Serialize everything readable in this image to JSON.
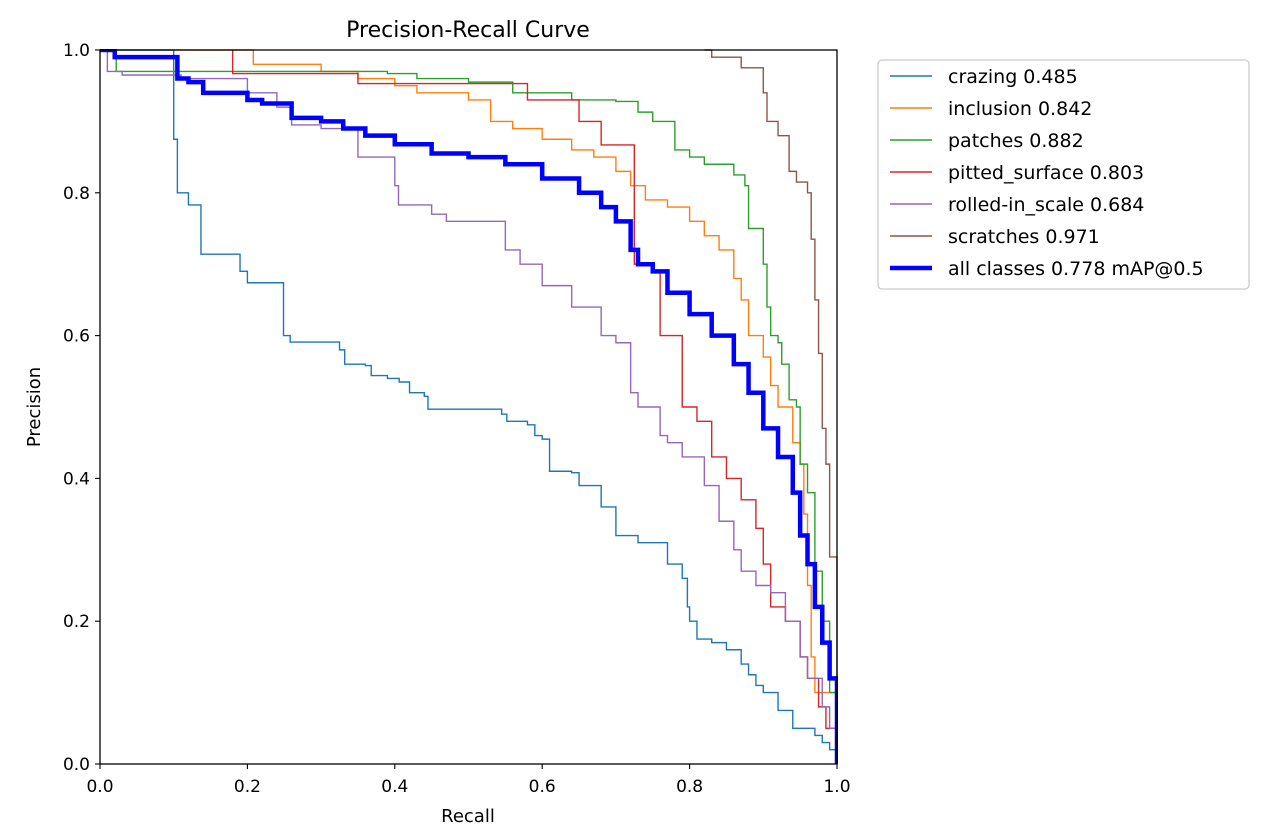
{
  "chart_data": {
    "type": "line",
    "title": "Precision-Recall Curve",
    "xlabel": "Recall",
    "ylabel": "Precision",
    "xlim": [
      0.0,
      1.0
    ],
    "ylim": [
      0.0,
      1.0
    ],
    "xticks": [
      "0.0",
      "0.2",
      "0.4",
      "0.6",
      "0.8",
      "1.0"
    ],
    "yticks": [
      "0.0",
      "0.2",
      "0.4",
      "0.6",
      "0.8",
      "1.0"
    ],
    "grid": false,
    "legend_position": "outside-top-right",
    "series": [
      {
        "name": "crazing 0.485",
        "color": "#1f77b4",
        "emphasis": false,
        "points": [
          [
            0.0,
            1.0
          ],
          [
            0.094,
            1.0
          ],
          [
            0.1,
            0.875
          ],
          [
            0.105,
            0.8
          ],
          [
            0.12,
            0.783
          ],
          [
            0.137,
            0.714
          ],
          [
            0.18,
            0.714
          ],
          [
            0.19,
            0.69
          ],
          [
            0.2,
            0.674
          ],
          [
            0.247,
            0.674
          ],
          [
            0.249,
            0.6
          ],
          [
            0.258,
            0.591
          ],
          [
            0.32,
            0.591
          ],
          [
            0.325,
            0.58
          ],
          [
            0.332,
            0.56
          ],
          [
            0.36,
            0.558
          ],
          [
            0.368,
            0.544
          ],
          [
            0.39,
            0.54
          ],
          [
            0.406,
            0.535
          ],
          [
            0.42,
            0.52
          ],
          [
            0.44,
            0.515
          ],
          [
            0.445,
            0.497
          ],
          [
            0.52,
            0.497
          ],
          [
            0.545,
            0.49
          ],
          [
            0.552,
            0.48
          ],
          [
            0.58,
            0.475
          ],
          [
            0.59,
            0.46
          ],
          [
            0.6,
            0.455
          ],
          [
            0.61,
            0.41
          ],
          [
            0.64,
            0.408
          ],
          [
            0.65,
            0.39
          ],
          [
            0.67,
            0.39
          ],
          [
            0.68,
            0.36
          ],
          [
            0.7,
            0.32
          ],
          [
            0.72,
            0.32
          ],
          [
            0.73,
            0.31
          ],
          [
            0.76,
            0.31
          ],
          [
            0.77,
            0.28
          ],
          [
            0.79,
            0.26
          ],
          [
            0.797,
            0.22
          ],
          [
            0.8,
            0.2
          ],
          [
            0.81,
            0.175
          ],
          [
            0.83,
            0.17
          ],
          [
            0.85,
            0.16
          ],
          [
            0.87,
            0.14
          ],
          [
            0.88,
            0.125
          ],
          [
            0.89,
            0.11
          ],
          [
            0.9,
            0.1
          ],
          [
            0.92,
            0.075
          ],
          [
            0.94,
            0.05
          ],
          [
            0.97,
            0.04
          ],
          [
            0.98,
            0.03
          ],
          [
            0.99,
            0.02
          ],
          [
            1.0,
            0.0
          ]
        ]
      },
      {
        "name": "inclusion 0.842",
        "color": "#ff7f0e",
        "emphasis": false,
        "points": [
          [
            0.1,
            1.0
          ],
          [
            0.2,
            1.0
          ],
          [
            0.208,
            0.98
          ],
          [
            0.29,
            0.98
          ],
          [
            0.3,
            0.97
          ],
          [
            0.34,
            0.97
          ],
          [
            0.35,
            0.96
          ],
          [
            0.4,
            0.95
          ],
          [
            0.43,
            0.94
          ],
          [
            0.5,
            0.93
          ],
          [
            0.53,
            0.9
          ],
          [
            0.56,
            0.89
          ],
          [
            0.6,
            0.875
          ],
          [
            0.64,
            0.86
          ],
          [
            0.67,
            0.85
          ],
          [
            0.7,
            0.83
          ],
          [
            0.72,
            0.81
          ],
          [
            0.74,
            0.79
          ],
          [
            0.77,
            0.78
          ],
          [
            0.8,
            0.76
          ],
          [
            0.82,
            0.74
          ],
          [
            0.84,
            0.72
          ],
          [
            0.86,
            0.68
          ],
          [
            0.87,
            0.65
          ],
          [
            0.88,
            0.6
          ],
          [
            0.9,
            0.57
          ],
          [
            0.91,
            0.53
          ],
          [
            0.92,
            0.5
          ],
          [
            0.94,
            0.45
          ],
          [
            0.95,
            0.42
          ],
          [
            0.955,
            0.35
          ],
          [
            0.96,
            0.25
          ],
          [
            0.965,
            0.15
          ],
          [
            0.97,
            0.1
          ],
          [
            1.0,
            0.0
          ]
        ]
      },
      {
        "name": "patches 0.882",
        "color": "#2ca02c",
        "emphasis": false,
        "points": [
          [
            0.0,
            1.0
          ],
          [
            0.02,
            1.0
          ],
          [
            0.022,
            0.97
          ],
          [
            0.2,
            0.97
          ],
          [
            0.3,
            0.97
          ],
          [
            0.39,
            0.967
          ],
          [
            0.43,
            0.96
          ],
          [
            0.5,
            0.955
          ],
          [
            0.56,
            0.94
          ],
          [
            0.64,
            0.93
          ],
          [
            0.7,
            0.928
          ],
          [
            0.73,
            0.913
          ],
          [
            0.75,
            0.9
          ],
          [
            0.78,
            0.86
          ],
          [
            0.8,
            0.85
          ],
          [
            0.82,
            0.84
          ],
          [
            0.86,
            0.825
          ],
          [
            0.875,
            0.81
          ],
          [
            0.88,
            0.75
          ],
          [
            0.9,
            0.7
          ],
          [
            0.905,
            0.64
          ],
          [
            0.91,
            0.6
          ],
          [
            0.92,
            0.59
          ],
          [
            0.925,
            0.56
          ],
          [
            0.935,
            0.51
          ],
          [
            0.945,
            0.5
          ],
          [
            0.95,
            0.42
          ],
          [
            0.96,
            0.38
          ],
          [
            0.97,
            0.27
          ],
          [
            0.98,
            0.2
          ],
          [
            0.99,
            0.1
          ],
          [
            1.0,
            0.0
          ]
        ]
      },
      {
        "name": "pitted_surface 0.803",
        "color": "#d62728",
        "emphasis": false,
        "points": [
          [
            0.18,
            1.0
          ],
          [
            0.18,
            0.967
          ],
          [
            0.34,
            0.967
          ],
          [
            0.35,
            0.953
          ],
          [
            0.57,
            0.953
          ],
          [
            0.58,
            0.93
          ],
          [
            0.64,
            0.93
          ],
          [
            0.65,
            0.9
          ],
          [
            0.67,
            0.9
          ],
          [
            0.68,
            0.867
          ],
          [
            0.72,
            0.867
          ],
          [
            0.725,
            0.7
          ],
          [
            0.75,
            0.69
          ],
          [
            0.76,
            0.6
          ],
          [
            0.77,
            0.6
          ],
          [
            0.79,
            0.5
          ],
          [
            0.8,
            0.5
          ],
          [
            0.81,
            0.48
          ],
          [
            0.83,
            0.43
          ],
          [
            0.85,
            0.4
          ],
          [
            0.87,
            0.37
          ],
          [
            0.89,
            0.33
          ],
          [
            0.9,
            0.28
          ],
          [
            0.91,
            0.22
          ],
          [
            0.93,
            0.2
          ],
          [
            0.95,
            0.15
          ],
          [
            0.96,
            0.12
          ],
          [
            0.975,
            0.08
          ],
          [
            0.985,
            0.05
          ],
          [
            1.0,
            0.0
          ]
        ]
      },
      {
        "name": "rolled-in_scale 0.684",
        "color": "#9467bd",
        "emphasis": false,
        "points": [
          [
            0.0,
            1.0
          ],
          [
            0.01,
            0.97
          ],
          [
            0.03,
            0.965
          ],
          [
            0.1,
            0.965
          ],
          [
            0.11,
            0.96
          ],
          [
            0.17,
            0.96
          ],
          [
            0.2,
            0.94
          ],
          [
            0.24,
            0.92
          ],
          [
            0.26,
            0.895
          ],
          [
            0.3,
            0.89
          ],
          [
            0.35,
            0.85
          ],
          [
            0.4,
            0.81
          ],
          [
            0.405,
            0.783
          ],
          [
            0.45,
            0.77
          ],
          [
            0.47,
            0.76
          ],
          [
            0.53,
            0.76
          ],
          [
            0.55,
            0.72
          ],
          [
            0.57,
            0.7
          ],
          [
            0.6,
            0.67
          ],
          [
            0.64,
            0.64
          ],
          [
            0.68,
            0.6
          ],
          [
            0.7,
            0.59
          ],
          [
            0.72,
            0.52
          ],
          [
            0.73,
            0.5
          ],
          [
            0.76,
            0.46
          ],
          [
            0.77,
            0.45
          ],
          [
            0.79,
            0.43
          ],
          [
            0.82,
            0.39
          ],
          [
            0.84,
            0.34
          ],
          [
            0.86,
            0.3
          ],
          [
            0.87,
            0.27
          ],
          [
            0.89,
            0.25
          ],
          [
            0.91,
            0.24
          ],
          [
            0.93,
            0.2
          ],
          [
            0.95,
            0.15
          ],
          [
            0.96,
            0.12
          ],
          [
            0.98,
            0.08
          ],
          [
            0.99,
            0.05
          ],
          [
            1.0,
            0.0
          ]
        ]
      },
      {
        "name": "scratches 0.971",
        "color": "#8c564b",
        "emphasis": false,
        "points": [
          [
            0.82,
            1.0
          ],
          [
            0.83,
            0.99
          ],
          [
            0.86,
            0.99
          ],
          [
            0.87,
            0.975
          ],
          [
            0.9,
            0.94
          ],
          [
            0.905,
            0.9
          ],
          [
            0.92,
            0.88
          ],
          [
            0.935,
            0.83
          ],
          [
            0.945,
            0.815
          ],
          [
            0.96,
            0.8
          ],
          [
            0.965,
            0.735
          ],
          [
            0.97,
            0.65
          ],
          [
            0.975,
            0.575
          ],
          [
            0.98,
            0.47
          ],
          [
            0.985,
            0.42
          ],
          [
            0.99,
            0.29
          ],
          [
            1.0,
            0.0
          ]
        ]
      },
      {
        "name": "all classes 0.778 mAP@0.5",
        "color": "#0000ff",
        "emphasis": true,
        "points": [
          [
            0.0,
            1.0
          ],
          [
            0.02,
            0.99
          ],
          [
            0.1,
            0.99
          ],
          [
            0.105,
            0.96
          ],
          [
            0.12,
            0.955
          ],
          [
            0.14,
            0.94
          ],
          [
            0.18,
            0.94
          ],
          [
            0.2,
            0.93
          ],
          [
            0.22,
            0.925
          ],
          [
            0.26,
            0.905
          ],
          [
            0.3,
            0.9
          ],
          [
            0.33,
            0.89
          ],
          [
            0.36,
            0.88
          ],
          [
            0.4,
            0.868
          ],
          [
            0.45,
            0.855
          ],
          [
            0.5,
            0.85
          ],
          [
            0.55,
            0.84
          ],
          [
            0.6,
            0.82
          ],
          [
            0.65,
            0.8
          ],
          [
            0.68,
            0.78
          ],
          [
            0.7,
            0.76
          ],
          [
            0.72,
            0.72
          ],
          [
            0.73,
            0.7
          ],
          [
            0.75,
            0.69
          ],
          [
            0.77,
            0.66
          ],
          [
            0.8,
            0.63
          ],
          [
            0.83,
            0.6
          ],
          [
            0.86,
            0.56
          ],
          [
            0.88,
            0.52
          ],
          [
            0.9,
            0.47
          ],
          [
            0.92,
            0.43
          ],
          [
            0.94,
            0.38
          ],
          [
            0.95,
            0.32
          ],
          [
            0.96,
            0.28
          ],
          [
            0.97,
            0.22
          ],
          [
            0.98,
            0.17
          ],
          [
            0.99,
            0.12
          ],
          [
            1.0,
            0.0
          ]
        ]
      }
    ]
  }
}
